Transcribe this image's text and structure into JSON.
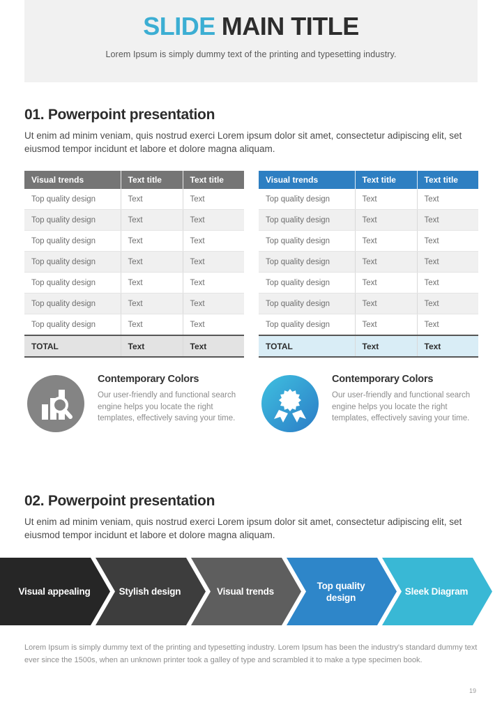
{
  "header": {
    "title_accent": "SLIDE",
    "title_rest": "MAIN TITLE",
    "subtitle": "Lorem Ipsum is simply dummy text of the printing and typesetting industry."
  },
  "section1": {
    "heading": "01. Powerpoint presentation",
    "body": "Ut enim ad minim veniam, quis nostrud exerci  Lorem ipsum dolor sit amet, consectetur adipiscing elit, set eiusmod tempor incidunt et labore et dolore magna aliquam."
  },
  "section2": {
    "heading": "02. Powerpoint presentation",
    "body": "Ut enim ad minim veniam, quis nostrud exerci  Lorem ipsum dolor sit amet, consectetur adipiscing elit, set eiusmod tempor incidunt et labore et dolore magna aliquam."
  },
  "tables": {
    "left": {
      "theme": "gray",
      "header_bg": "#757575",
      "total_bg": "#e3e3e3",
      "headers": [
        "Visual trends",
        "Text title",
        "Text title"
      ],
      "rows": [
        [
          "Top quality design",
          "Text",
          "Text"
        ],
        [
          "Top quality design",
          "Text",
          "Text"
        ],
        [
          "Top quality design",
          "Text",
          "Text"
        ],
        [
          "Top quality design",
          "Text",
          "Text"
        ],
        [
          "Top quality design",
          "Text",
          "Text"
        ],
        [
          "Top quality design",
          "Text",
          "Text"
        ],
        [
          "Top quality design",
          "Text",
          "Text"
        ]
      ],
      "total_row": [
        "TOTAL",
        "Text",
        "Text"
      ]
    },
    "right": {
      "theme": "blue",
      "header_bg": "#2e7fc2",
      "total_bg": "#d9edf6",
      "headers": [
        "Visual trends",
        "Text title",
        "Text title"
      ],
      "rows": [
        [
          "Top quality design",
          "Text",
          "Text"
        ],
        [
          "Top quality design",
          "Text",
          "Text"
        ],
        [
          "Top quality design",
          "Text",
          "Text"
        ],
        [
          "Top quality design",
          "Text",
          "Text"
        ],
        [
          "Top quality design",
          "Text",
          "Text"
        ],
        [
          "Top quality design",
          "Text",
          "Text"
        ],
        [
          "Top quality design",
          "Text",
          "Text"
        ]
      ],
      "total_row": [
        "TOTAL",
        "Text",
        "Text"
      ]
    }
  },
  "features": {
    "left": {
      "icon": "bar-chart-search-icon",
      "icon_color": "#848484",
      "title": "Contemporary Colors",
      "body": "Our user-friendly and functional search engine helps you locate the right templates, effectively saving your time."
    },
    "right": {
      "icon": "award-ribbon-icon",
      "icon_gradient": [
        "#3fc0e0",
        "#2b7cc6"
      ],
      "title": "Contemporary Colors",
      "body": "Our user-friendly and functional search engine helps you locate the right templates, effectively saving your time."
    }
  },
  "diagram": {
    "steps": [
      {
        "label": "Visual appealing",
        "color": "#262626"
      },
      {
        "label": "Stylish design",
        "color": "#3d3d3d"
      },
      {
        "label": "Visual trends",
        "color": "#5e5e5e"
      },
      {
        "label": "Top quality design",
        "color": "#2e86c9"
      },
      {
        "label": "Sleek Diagram",
        "color": "#39b8d5"
      }
    ]
  },
  "footer": {
    "body": "Lorem Ipsum is simply dummy text of the printing and typesetting industry. Lorem Ipsum has been the industry's standard dummy text ever since the 1500s, when an unknown printer took a galley of type and scrambled it to make a type specimen book."
  },
  "page": {
    "number": "19"
  },
  "colors": {
    "accent_blue": "#3caed3",
    "header_band_bg": "#f1f1f1",
    "heading_text": "#2c2c2c",
    "body_text": "#4a4a4a",
    "muted_text": "#8b8b8b"
  }
}
